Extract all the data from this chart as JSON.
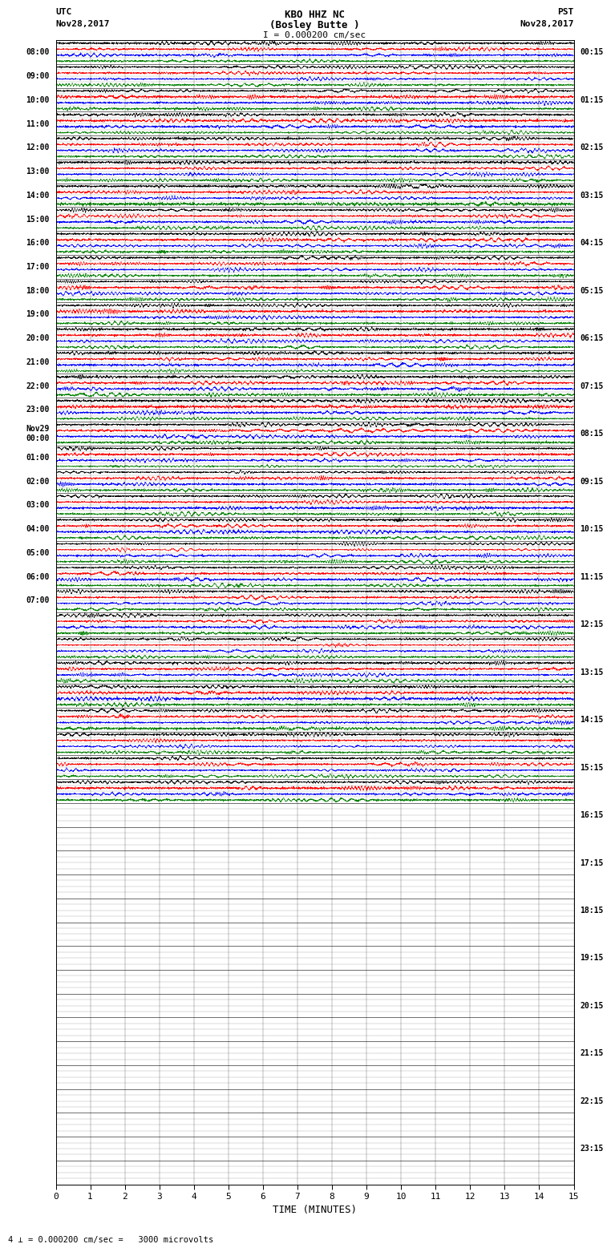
{
  "title_line1": "KBO HHZ NC",
  "title_line2": "(Bosley Butte )",
  "title_line3": "I = 0.000200 cm/sec",
  "left_label_top": "UTC",
  "left_label_date": "Nov28,2017",
  "right_label_top": "PST",
  "right_label_date": "Nov28,2017",
  "bottom_label": "TIME (MINUTES)",
  "scale_label": "= 0.000200 cm/sec =   3000 microvolts",
  "n_hour_bands": 48,
  "n_active_bands": 32,
  "n_subrows": 4,
  "left_times": [
    "08:00",
    "09:00",
    "10:00",
    "11:00",
    "12:00",
    "13:00",
    "14:00",
    "15:00",
    "16:00",
    "17:00",
    "18:00",
    "19:00",
    "20:00",
    "21:00",
    "22:00",
    "23:00",
    "Nov29\n00:00",
    "01:00",
    "02:00",
    "03:00",
    "04:00",
    "05:00",
    "06:00",
    "07:00"
  ],
  "right_times": [
    "00:15",
    "01:15",
    "02:15",
    "03:15",
    "04:15",
    "05:15",
    "06:15",
    "07:15",
    "08:15",
    "09:15",
    "10:15",
    "11:15",
    "12:15",
    "13:15",
    "14:15",
    "15:15",
    "16:15",
    "17:15",
    "18:15",
    "19:15",
    "20:15",
    "21:15",
    "22:15",
    "23:15"
  ],
  "x_ticks": [
    0,
    1,
    2,
    3,
    4,
    5,
    6,
    7,
    8,
    9,
    10,
    11,
    12,
    13,
    14,
    15
  ],
  "x_min": 0,
  "x_max": 15,
  "colors_cycle": [
    "black",
    "red",
    "blue",
    "green"
  ],
  "background_color": "white",
  "trace_amplitude": 0.45,
  "n_pts": 3000
}
